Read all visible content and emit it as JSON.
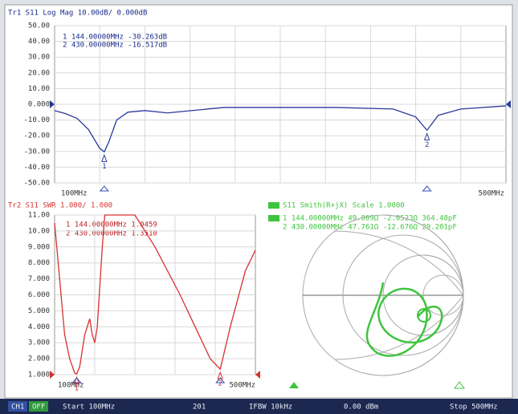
{
  "trace1": {
    "title": "Tr1 S11 Log Mag 10.00dB/ 0.000dB",
    "markers": [
      "1 144.00000MHz -30.263dB",
      "2 430.00000MHz -16.517dB"
    ],
    "marker_ids": [
      "1",
      "2"
    ],
    "x_start_label": "100MHz",
    "x_stop_label": "500MHz",
    "xlim": [
      100,
      500
    ],
    "ylim": [
      -50,
      50
    ],
    "yticks": [
      {
        "value": 50,
        "label": "50.00"
      },
      {
        "value": 40,
        "label": "40.00"
      },
      {
        "value": 30,
        "label": "30.00"
      },
      {
        "value": 20,
        "label": "20.00"
      },
      {
        "value": 10,
        "label": "10.00"
      },
      {
        "value": 0,
        "label": "0.000"
      },
      {
        "value": -10,
        "label": "-10.00"
      },
      {
        "value": -20,
        "label": "-20.00"
      },
      {
        "value": -30,
        "label": "-30.00"
      },
      {
        "value": -40,
        "label": "-40.00"
      },
      {
        "value": -50,
        "label": "-50.00"
      }
    ],
    "x": [
      100,
      110,
      120,
      130,
      140,
      144,
      148,
      155,
      165,
      180,
      200,
      250,
      300,
      350,
      400,
      420,
      430,
      440,
      460,
      500
    ],
    "values": [
      -4,
      -6,
      -9,
      -16,
      -28,
      -30.263,
      -24,
      -10,
      -5,
      -4,
      -5.5,
      -2,
      -2,
      -2,
      -3,
      -8,
      -16.517,
      -7,
      -3,
      -1
    ],
    "color": "#2a3a9a"
  },
  "trace2": {
    "title": "Tr2 S11 SWR 1.000/ 1.000",
    "markers": [
      "1 144.00000MHz 1.0459",
      "2 430.00000MHz 1.3510"
    ],
    "marker_ids": [
      "1",
      "2"
    ],
    "x_start_label": "100MHz",
    "x_stop_label": "500MHz",
    "xlim": [
      100,
      500
    ],
    "ylim": [
      1,
      11
    ],
    "yticks": [
      {
        "value": 11,
        "label": "11.00"
      },
      {
        "value": 10,
        "label": "10.00"
      },
      {
        "value": 9,
        "label": "9.000"
      },
      {
        "value": 8,
        "label": "8.000"
      },
      {
        "value": 7,
        "label": "7.000"
      },
      {
        "value": 6,
        "label": "6.000"
      },
      {
        "value": 5,
        "label": "5.000"
      },
      {
        "value": 4,
        "label": "4.000"
      },
      {
        "value": 3,
        "label": "3.000"
      },
      {
        "value": 2,
        "label": "2.000"
      },
      {
        "value": 1,
        "label": "1.000"
      }
    ],
    "x": [
      100,
      110,
      120,
      130,
      140,
      144,
      150,
      160,
      170,
      175,
      180,
      185,
      195,
      200,
      260,
      300,
      350,
      380,
      410,
      430,
      450,
      480,
      500
    ],
    "values": [
      10.5,
      7,
      3.5,
      2,
      1.1,
      1.0459,
      1.5,
      3.5,
      4.5,
      3.5,
      3,
      4,
      9,
      11,
      11,
      9,
      6,
      4,
      2,
      1.351,
      4,
      7.5,
      8.8
    ],
    "color": "#d83030"
  },
  "smith": {
    "title": "S11 Smith(R+jX) Scale 1.0000",
    "markers": [
      "1 144.00000MHz 49.809Ω -2.0523Ω 364.48pF",
      "2 430.00000MHz 47.761Ω -12.676Ω 29.201pF"
    ]
  },
  "status": [
    "CH1",
    "OFF",
    "Start 100MHz",
    "201",
    "IFBW 10kHz",
    "0.00 dBm",
    "Stop 500MHz"
  ]
}
